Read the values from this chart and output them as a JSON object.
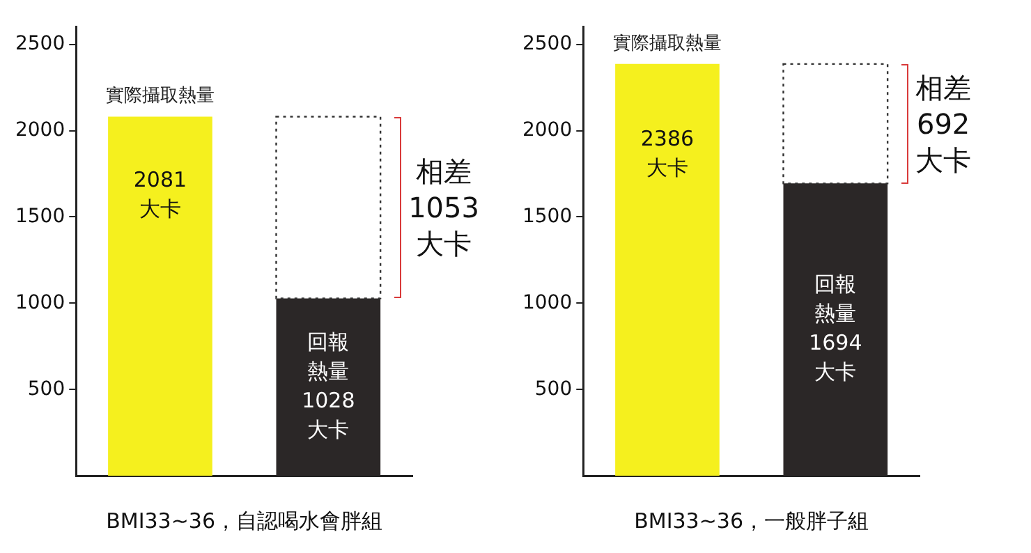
{
  "chart_data": [
    {
      "type": "bar",
      "xlabel": "BMI33~36，自認喝水會胖組",
      "categories": [
        null,
        null
      ],
      "stacked": true,
      "ylim": [
        0,
        2600
      ],
      "yticks": [
        500,
        1000,
        1500,
        2000,
        2500
      ],
      "grid": false,
      "legend": false,
      "annotations": [
        "相差1053大卡"
      ],
      "series": [
        {
          "name": "實際攝取熱量",
          "color": "#f5f01e",
          "values": [
            2081,
            null
          ],
          "value_labels": [
            "2081大卡",
            null
          ]
        },
        {
          "color": "#2b2727",
          "values": [
            null,
            1028
          ],
          "value_labels": [
            null,
            "回報熱量1028大卡"
          ]
        },
        {
          "color": "#ffffff",
          "line_style": "dotted",
          "values": [
            null,
            1053
          ]
        }
      ]
    },
    {
      "type": "bar",
      "xlabel": "BMI33~36，一般胖子組",
      "categories": [
        null,
        null
      ],
      "stacked": true,
      "ylim": [
        0,
        2600
      ],
      "yticks": [
        500,
        1000,
        1500,
        2000,
        2500
      ],
      "grid": false,
      "legend": false,
      "annotations": [
        "相差692大卡"
      ],
      "series": [
        {
          "name": "實際攝取熱量",
          "color": "#f5f01e",
          "values": [
            2386,
            null
          ],
          "value_labels": [
            "2386大卡",
            null
          ]
        },
        {
          "color": "#2b2727",
          "values": [
            null,
            1694
          ],
          "value_labels": [
            null,
            "回報熱量1694大卡"
          ]
        },
        {
          "color": "#ffffff",
          "line_style": "dotted",
          "values": [
            null,
            692
          ]
        }
      ]
    }
  ]
}
